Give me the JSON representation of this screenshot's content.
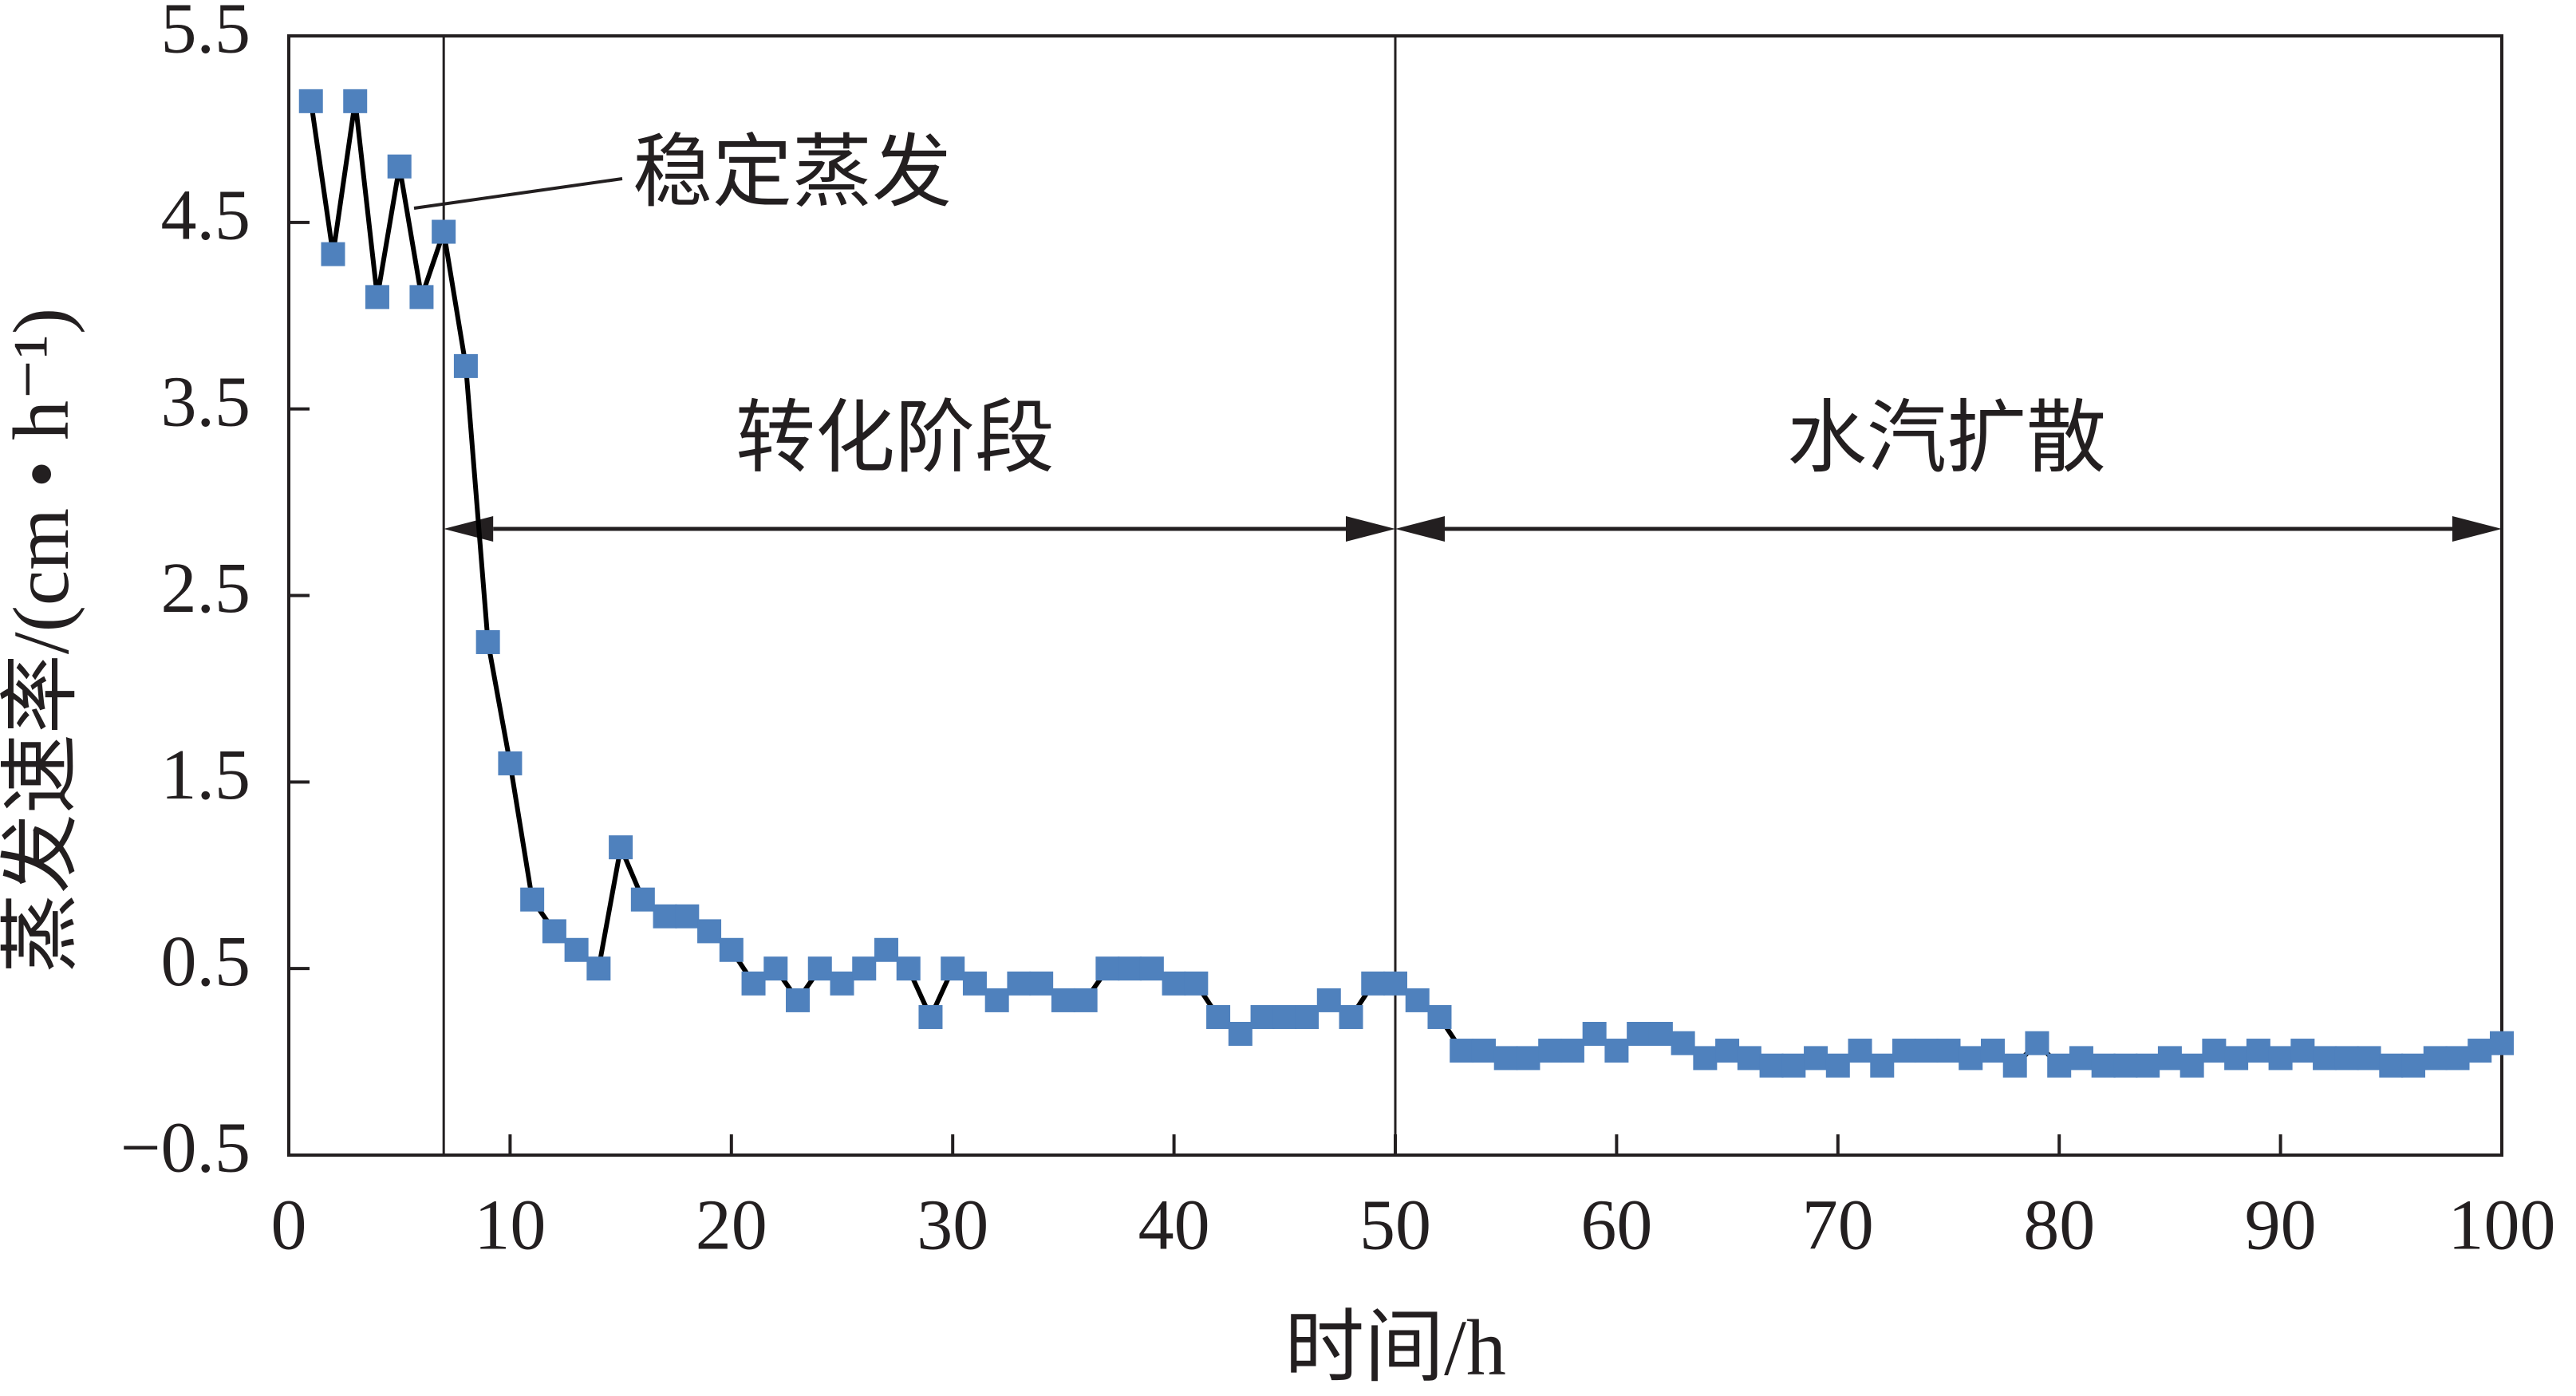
{
  "chart_data": {
    "type": "line",
    "xlabel": "时间/h",
    "ylabel": "蒸发速率/(cm • h⁻¹)",
    "annotations": {
      "stable": "稳定蒸发",
      "transition": "转化阶段",
      "diffusion": "水汽扩散"
    },
    "phase_boundaries": [
      7,
      50
    ],
    "x": [
      1,
      2,
      3,
      4,
      5,
      6,
      7,
      8,
      9,
      10,
      11,
      12,
      13,
      14,
      15,
      16,
      17,
      18,
      19,
      20,
      21,
      22,
      23,
      24,
      25,
      26,
      27,
      28,
      29,
      30,
      31,
      32,
      33,
      34,
      35,
      36,
      37,
      38,
      39,
      40,
      41,
      42,
      43,
      44,
      45,
      46,
      47,
      48,
      49,
      50,
      51,
      52,
      53,
      54,
      55,
      56,
      57,
      58,
      59,
      60,
      61,
      62,
      63,
      64,
      65,
      66,
      67,
      68,
      69,
      70,
      71,
      72,
      73,
      74,
      75,
      76,
      77,
      78,
      79,
      80,
      81,
      82,
      83,
      84,
      85,
      86,
      87,
      88,
      89,
      90,
      91,
      92,
      93,
      94,
      95,
      96,
      97,
      98,
      99,
      100
    ],
    "values": [
      5.15,
      4.33,
      5.15,
      4.1,
      4.8,
      4.1,
      4.45,
      3.73,
      2.25,
      1.6,
      0.87,
      0.7,
      0.6,
      0.5,
      1.15,
      0.87,
      0.78,
      0.78,
      0.7,
      0.6,
      0.42,
      0.5,
      0.33,
      0.5,
      0.42,
      0.5,
      0.6,
      0.5,
      0.24,
      0.5,
      0.42,
      0.33,
      0.42,
      0.42,
      0.33,
      0.33,
      0.5,
      0.5,
      0.5,
      0.42,
      0.42,
      0.24,
      0.15,
      0.24,
      0.24,
      0.24,
      0.33,
      0.24,
      0.42,
      0.42,
      0.33,
      0.24,
      0.06,
      0.06,
      0.02,
      0.02,
      0.06,
      0.06,
      0.15,
      0.06,
      0.15,
      0.15,
      0.1,
      0.02,
      0.06,
      0.02,
      -0.02,
      -0.02,
      0.02,
      -0.02,
      0.06,
      -0.02,
      0.06,
      0.06,
      0.06,
      0.02,
      0.06,
      -0.02,
      0.1,
      -0.02,
      0.02,
      -0.02,
      -0.02,
      -0.02,
      0.02,
      -0.02,
      0.06,
      0.02,
      0.06,
      0.02,
      0.06,
      0.02,
      0.02,
      0.02,
      -0.02,
      -0.02,
      0.02,
      0.02,
      0.06,
      0.1
    ],
    "color": "#4f81bd",
    "line_color": "#000000",
    "xlim": [
      0,
      100
    ],
    "xticks": [
      0,
      10,
      20,
      30,
      40,
      50,
      60,
      70,
      80,
      90,
      100
    ],
    "ylim": [
      -0.5,
      5.5
    ],
    "yticks": [
      {
        "value": -0.5,
        "label": "−0.5"
      },
      0.5,
      1.5,
      2.5,
      3.5,
      4.5,
      5.5
    ],
    "grid": false
  }
}
